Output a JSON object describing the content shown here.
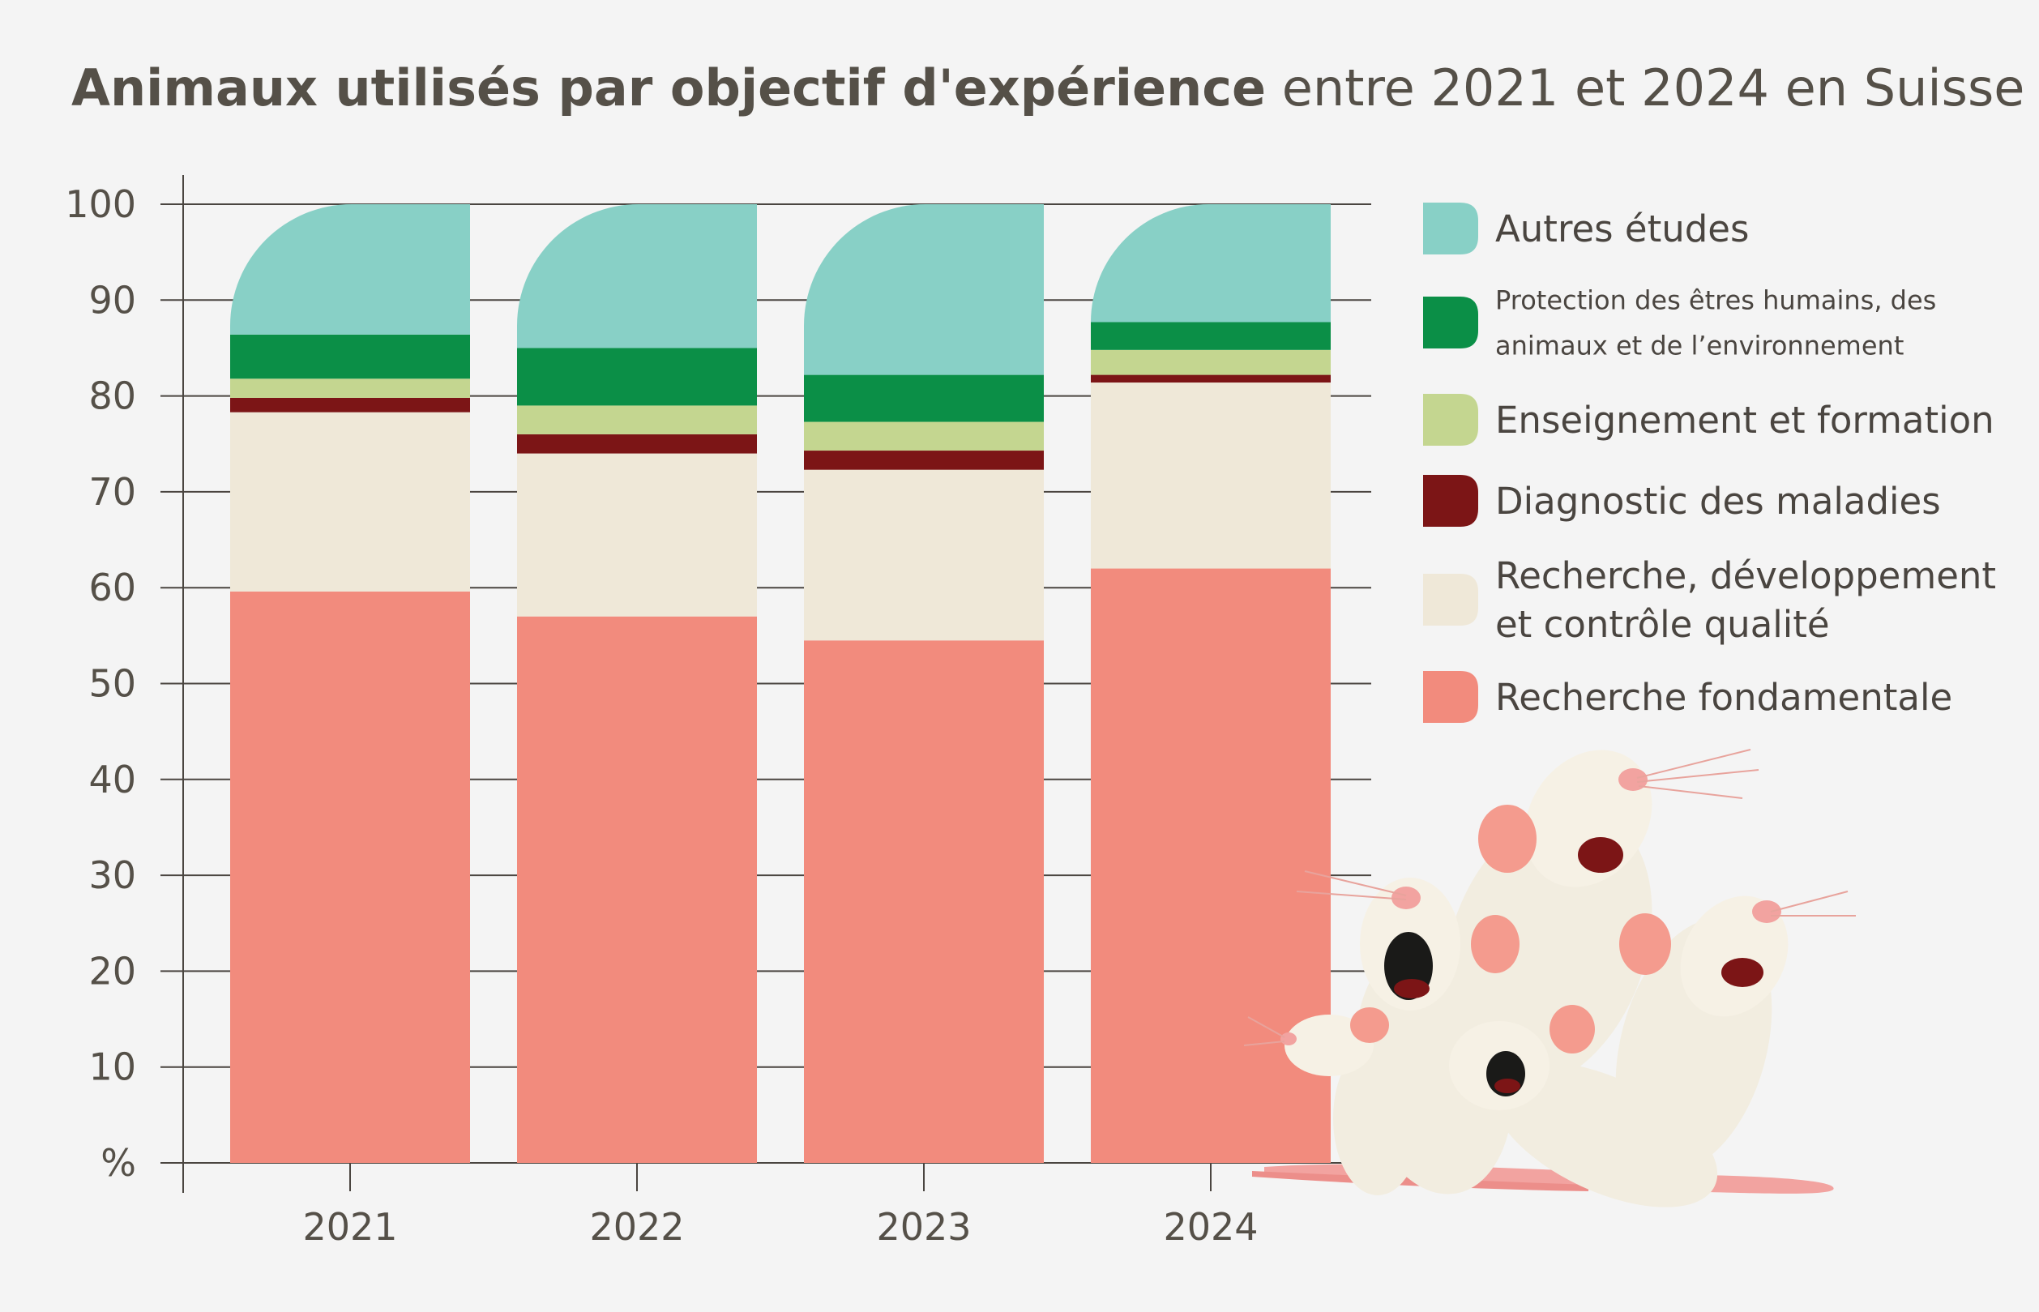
{
  "title": {
    "bold": "Animaux utilisés par objectif d'expérience",
    "regular": "entre 2021 et 2024 en Suisse"
  },
  "chart_data": {
    "type": "bar",
    "stacked": true,
    "title": "Animaux utilisés par objectif d'expérience entre 2021 et 2024 en Suisse",
    "categories": [
      "2021",
      "2022",
      "2023",
      "2024"
    ],
    "ylabel": "%",
    "ylim": [
      0,
      100
    ],
    "y_ticks": [
      "%",
      "10",
      "20",
      "30",
      "40",
      "50",
      "60",
      "70",
      "80",
      "90",
      "100"
    ],
    "grid": true,
    "legend_position": "right",
    "series": [
      {
        "name": "Recherche fondamentale",
        "color": "#f28b7d",
        "values": [
          59.6,
          57.0,
          54.5,
          62.0
        ]
      },
      {
        "name": "Recherche, développement et contrôle qualité",
        "color": "#efe8d8",
        "values": [
          18.7,
          17.0,
          17.8,
          19.4
        ]
      },
      {
        "name": "Diagnostic des maladies",
        "color": "#7c1516",
        "values": [
          1.5,
          2.0,
          2.0,
          0.8
        ]
      },
      {
        "name": "Enseignement et formation",
        "color": "#c4d690",
        "values": [
          2.0,
          3.0,
          3.0,
          2.6
        ]
      },
      {
        "name": "Protection des êtres humains, des animaux et de l’environnement",
        "color": "#0b8f47",
        "values": [
          4.6,
          6.0,
          4.9,
          2.9
        ]
      },
      {
        "name": "Autres études",
        "color": "#88d0c6",
        "values": [
          13.6,
          15.0,
          17.8,
          12.3
        ]
      }
    ]
  },
  "legend": [
    {
      "lines": [
        "Autres études"
      ],
      "color": "#88d0c6",
      "small": false
    },
    {
      "lines": [
        "Protection des êtres humains, des",
        "animaux et de l’environnement"
      ],
      "color": "#0b8f47",
      "small": true
    },
    {
      "lines": [
        "Enseignement et formation"
      ],
      "color": "#c4d690",
      "small": false
    },
    {
      "lines": [
        "Diagnostic des maladies"
      ],
      "color": "#7c1516",
      "small": false
    },
    {
      "lines": [
        "Recherche, développement",
        "et contrôle qualité"
      ],
      "color": "#efe8d8",
      "small": false
    },
    {
      "lines": [
        "Recherche fondamentale"
      ],
      "color": "#f28b7d",
      "small": false
    }
  ],
  "illustration": {
    "icon": "mice-illustration-icon"
  }
}
